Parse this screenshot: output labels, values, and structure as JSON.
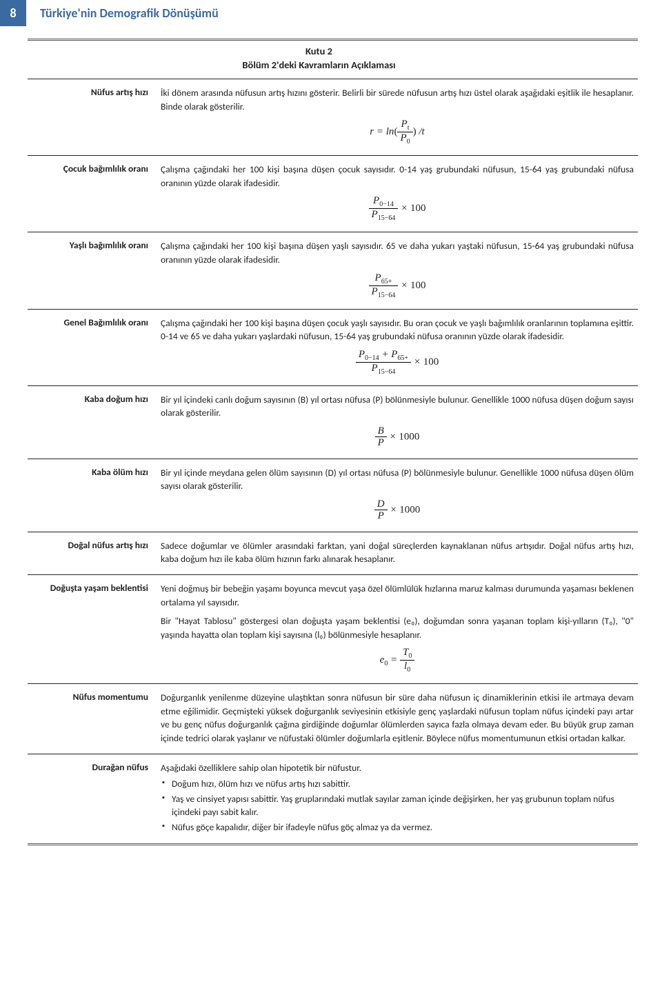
{
  "header": {
    "page_number": "8",
    "doc_title": "Türkiye'nin Demografik Dönüşümü"
  },
  "box": {
    "title_line1": "Kutu 2",
    "title_line2": "Bölüm 2'deki Kavramların Açıklaması"
  },
  "rows": [
    {
      "label": "Nüfus artış hızı",
      "text1": "İki dönem arasında nüfusun artış hızını gösterir. Belirli bir sürede nüfusun artış hızı üstel olarak aşağıdaki eşitlik ile hesaplanır. Binde olarak gösterilir.",
      "formula_html": "r = ln<span class='up'>(</span><span class='frac'><span class='n'>P<span class='sub'>t</span></span><span class='d'>P<span class='sub'>0</span></span></span><span class='up'>)</span> /t"
    },
    {
      "label": "Çocuk bağımlılık oranı",
      "text1": "Çalışma çağındaki her 100 kişi başına düşen çocuk sayısıdır. 0-14 yaş grubundaki nüfusun, 15-64 yaş grubundaki nüfusa oranının yüzde olarak ifadesidir.",
      "formula_html": "<span class='frac'><span class='n'>P<span class='sub'>0−14</span></span><span class='d'>P<span class='sub'>15−64</span></span></span> × <span class='up'>100</span>"
    },
    {
      "label": "Yaşlı bağımlılık oranı",
      "text1": "Çalışma çağındaki her 100 kişi başına düşen yaşlı sayısıdır. 65 ve daha yukarı yaştaki nüfusun, 15-64 yaş grubundaki nüfusa oranının yüzde olarak ifadesidir.",
      "formula_html": "<span class='frac'><span class='n'>P<span class='sub'>65+</span></span><span class='d'>P<span class='sub'>15−64</span></span></span> × <span class='up'>100</span>"
    },
    {
      "label": "Genel Bağımlılık oranı",
      "text1": "Çalışma çağındaki her 100 kişi başına düşen çocuk yaşlı sayısıdır. Bu oran çocuk ve yaşlı bağımlılık oranlarının toplamına eşittir. 0-14 ve 65 ve daha yukarı yaşlardaki nüfusun, 15-64 yaş grubundaki nüfusa oranının yüzde olarak ifadesidir.",
      "formula_html": "<span class='frac'><span class='n'>P<span class='sub'>0−14</span> + P<span class='sub'>65+</span></span><span class='d'>P<span class='sub'>15−64</span></span></span> × <span class='up'>100</span>"
    },
    {
      "label": "Kaba doğum hızı",
      "text1": "Bir yıl içindeki canlı doğum sayısının (B) yıl ortası nüfusa (P) bölünmesiyle bulunur. Genellikle 1000 nüfusa düşen doğum sayısı olarak gösterilir.",
      "formula_html": "<span class='frac'><span class='n'>B</span><span class='d'>P</span></span> × <span class='up'>1000</span>"
    },
    {
      "label": "Kaba ölüm hızı",
      "text1": "Bir yıl içinde meydana gelen ölüm sayısının (D) yıl ortası nüfusa (P) bölünmesiyle bulunur. Genellikle 1000 nüfusa düşen ölüm sayısı olarak gösterilir.",
      "formula_html": "<span class='frac'><span class='n'>D</span><span class='d'>P</span></span> × <span class='up'>1000</span>"
    },
    {
      "label": "Doğal nüfus artış hızı",
      "text1": "Sadece doğumlar ve ölümler arasındaki farktan, yani doğal süreçlerden kaynaklanan nüfus artışıdır. Doğal nüfus artış hızı, kaba doğum hızı ile kaba ölüm hızının farkı alınarak hesaplanır."
    },
    {
      "label": "Doğuşta yaşam beklentisi",
      "text1": "Yeni doğmuş bir bebeğin yaşamı boyunca mevcut yaşa özel ölümlülük hızlarına maruz kalması durumunda yaşaması beklenen ortalama yıl sayısıdır.",
      "text2": "Bir \"Hayat Tablosu\" göstergesi olan doğuşta yaşam beklentisi (e₀), doğumdan sonra yaşanan toplam kişi-yılların (T₀), \"0\" yaşında hayatta olan toplam kişi sayısına (l₀) bölünmesiyle hesaplanır.",
      "formula_html": "e<span class='sub'>0</span> = <span class='frac'><span class='n'>T<span class='sub'>0</span></span><span class='d'>l<span class='sub'>0</span></span></span>"
    },
    {
      "label": "Nüfus momentumu",
      "text1": "Doğurganlık yenilenme düzeyine ulaştıktan sonra nüfusun bir süre daha nüfusun iç dinamiklerinin etkisi ile artmaya devam etme eğilimidir. Geçmişteki yüksek doğurganlık seviyesinin etkisiyle genç yaşlardaki nüfusun toplam nüfus içindeki payı artar ve bu genç nüfus doğurganlık çağına girdiğinde doğumlar ölümlerden sayıca fazla olmaya devam eder. Bu büyük grup zaman içinde tedrici olarak yaşlanır ve nüfustaki ölümler doğumlarla eşitlenir. Böylece nüfus momentumunun etkisi ortadan kalkar."
    },
    {
      "label": "Durağan nüfus",
      "text1": "Aşağıdaki özelliklere sahip olan hipotetik bir nüfustur.",
      "bullets": [
        "Doğum hızı, ölüm hızı ve nüfus artış hızı sabittir.",
        "Yaş ve cinsiyet yapısı sabittir. Yaş gruplarındaki mutlak sayılar zaman içinde değişirken, her yaş grubunun toplam nüfus içindeki payı sabit kalır.",
        "Nüfus göçe kapalıdır, diğer bir ifadeyle nüfus göç almaz ya da vermez."
      ]
    }
  ]
}
